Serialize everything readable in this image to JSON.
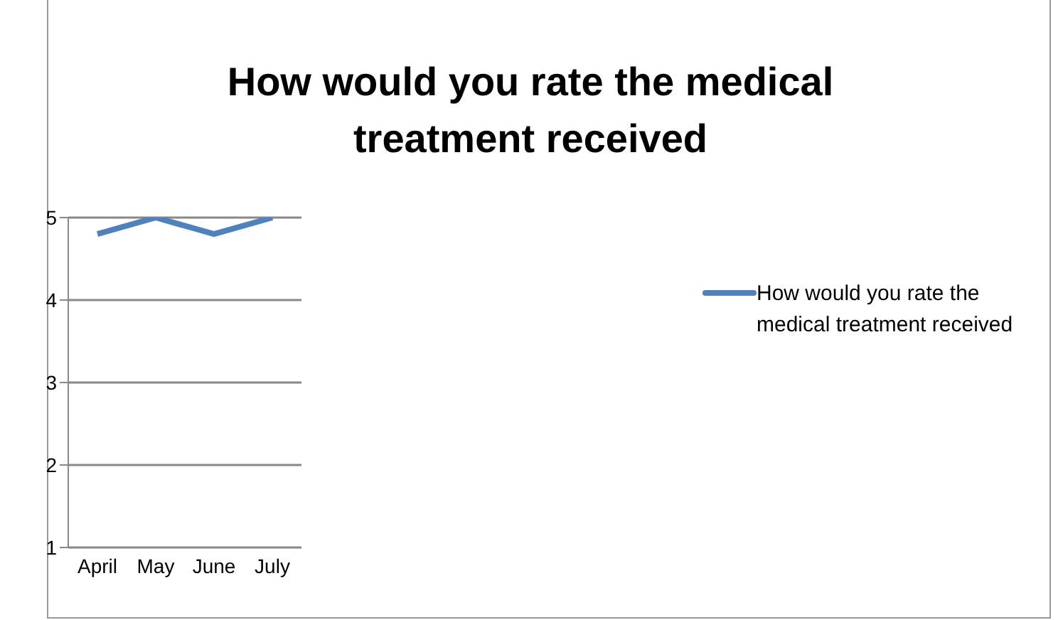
{
  "chart_data": {
    "type": "line",
    "title": "How would you rate the medical treatment received",
    "categories": [
      "April",
      "May",
      "June",
      "July"
    ],
    "series": [
      {
        "name": "How would you rate the medical treatment received",
        "color": "#4f81bd",
        "values": [
          4.8,
          5,
          4.8,
          5
        ]
      }
    ],
    "ylim": [
      1,
      5
    ],
    "yticks": [
      1,
      2,
      3,
      4,
      5
    ],
    "grid": "y",
    "legend": "right"
  }
}
